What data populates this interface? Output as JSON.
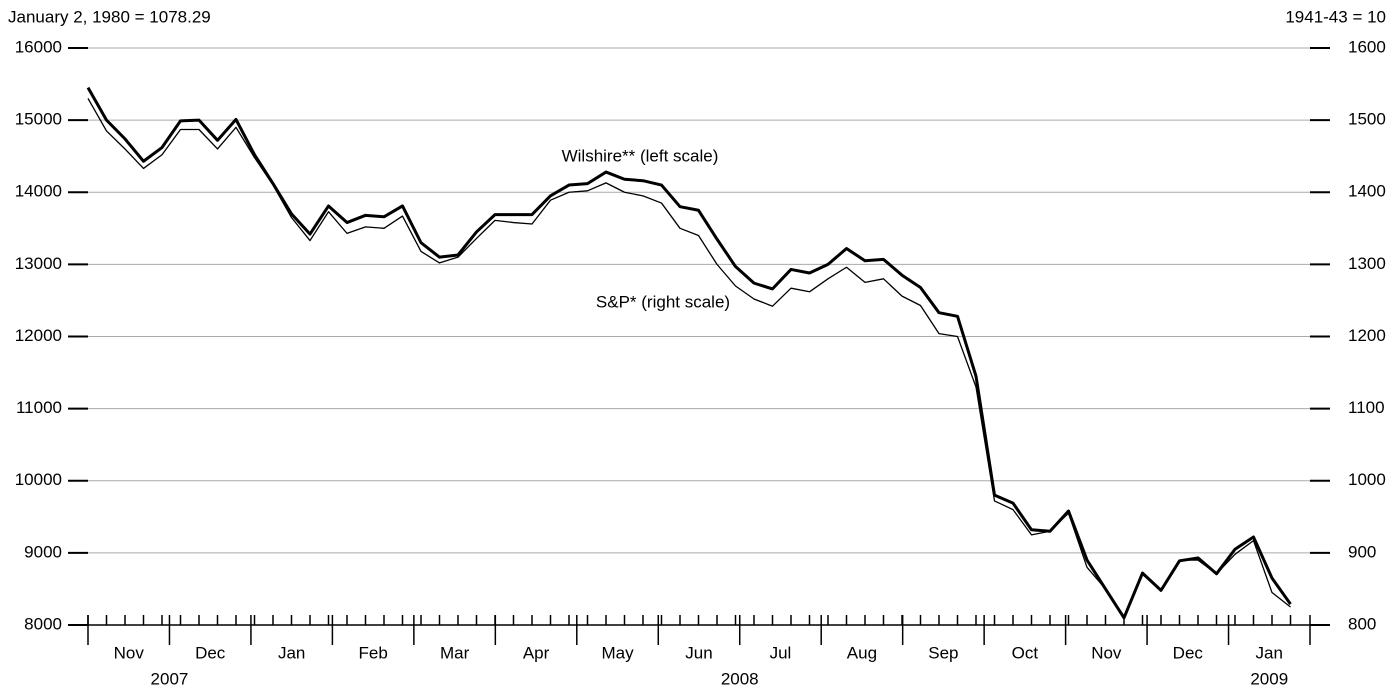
{
  "chart_data": {
    "type": "line",
    "left_note": "January 2, 1980 = 1078.29",
    "right_note": "1941-43 = 10",
    "months": [
      "Nov",
      "Dec",
      "Jan",
      "Feb",
      "Mar",
      "Apr",
      "May",
      "Jun",
      "Jul",
      "Aug",
      "Sep",
      "Oct",
      "Nov",
      "Dec",
      "Jan"
    ],
    "years": [
      "2007",
      "2008",
      "2009"
    ],
    "ylim": [
      8000,
      16000
    ],
    "yticks": [
      8000,
      9000,
      10000,
      11000,
      12000,
      13000,
      14000,
      15000,
      16000
    ],
    "y2lim": [
      800,
      1600
    ],
    "y2ticks": [
      800,
      900,
      1000,
      1100,
      1200,
      1300,
      1400,
      1500,
      1600
    ],
    "grid": true,
    "series": [
      {
        "name": "Wilshire** (left scale)",
        "color": "#000000",
        "values": [
          15450,
          15000,
          14740,
          14430,
          14620,
          14990,
          15000,
          14720,
          15010,
          14520,
          14120,
          13700,
          13420,
          13810,
          13580,
          13680,
          13660,
          13810,
          13300,
          13100,
          13130,
          13450,
          13690,
          13690,
          13690,
          13950,
          14100,
          14120,
          14280,
          14180,
          14160,
          14100,
          13800,
          13750,
          13350,
          12970,
          12740,
          12660,
          12930,
          12880,
          13000,
          13220,
          13050,
          13070,
          12850,
          12680,
          12330,
          12280,
          11450,
          9800,
          9690,
          9320,
          9300,
          9580,
          8900,
          8500,
          8100,
          8720,
          8480,
          8890,
          8930,
          8710,
          9050,
          9220,
          8650,
          8290
        ]
      },
      {
        "name": "S&P* (right scale)",
        "color": "#000000",
        "axis": "y2",
        "values": [
          1530,
          1485,
          1460,
          1433,
          1452,
          1487,
          1487,
          1460,
          1490,
          1448,
          1410,
          1365,
          1333,
          1373,
          1343,
          1352,
          1350,
          1367,
          1318,
          1302,
          1310,
          1336,
          1361,
          1358,
          1356,
          1389,
          1400,
          1402,
          1413,
          1400,
          1395,
          1385,
          1350,
          1340,
          1300,
          1270,
          1252,
          1242,
          1267,
          1262,
          1280,
          1296,
          1275,
          1280,
          1256,
          1243,
          1204,
          1200,
          1130,
          972,
          960,
          925,
          930,
          955,
          880,
          850,
          812,
          870,
          848,
          890,
          890,
          871,
          898,
          917,
          845,
          825
        ]
      }
    ]
  }
}
